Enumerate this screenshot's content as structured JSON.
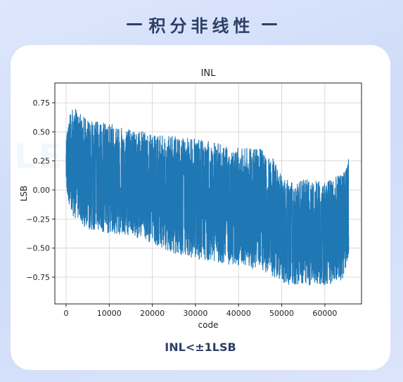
{
  "header": {
    "title": "积分非线性"
  },
  "caption": "INL<±1LSB",
  "chart_data": {
    "type": "line",
    "title": "INL",
    "xlabel": "code",
    "ylabel": "LSB",
    "xlim": [
      -2600,
      68500
    ],
    "ylim": [
      -0.98,
      0.92
    ],
    "xticks": [
      0,
      10000,
      20000,
      30000,
      40000,
      50000,
      60000
    ],
    "yticks": [
      -0.75,
      -0.5,
      -0.25,
      0.0,
      0.25,
      0.5,
      0.75
    ],
    "ytick_labels": [
      "−0.75",
      "−0.50",
      "−0.25",
      "0.00",
      "0.25",
      "0.50",
      "0.75"
    ],
    "grid": true,
    "color": "#1f77b4",
    "series": [
      {
        "envelope": {
          "x": [
            0,
            1000,
            5000,
            10000,
            15000,
            20000,
            25000,
            30000,
            35000,
            40000,
            45000,
            48000,
            50000,
            52000,
            55000,
            60000,
            64000,
            65535
          ],
          "upper": [
            0.4,
            0.72,
            0.58,
            0.55,
            0.52,
            0.45,
            0.44,
            0.42,
            0.38,
            0.34,
            0.33,
            0.25,
            0.1,
            0.05,
            0.07,
            0.05,
            0.12,
            0.25
          ],
          "lower": [
            0.05,
            -0.18,
            -0.32,
            -0.35,
            -0.37,
            -0.44,
            -0.52,
            -0.57,
            -0.6,
            -0.63,
            -0.67,
            -0.72,
            -0.78,
            -0.8,
            -0.8,
            -0.8,
            -0.76,
            -0.55
          ]
        }
      }
    ]
  }
}
